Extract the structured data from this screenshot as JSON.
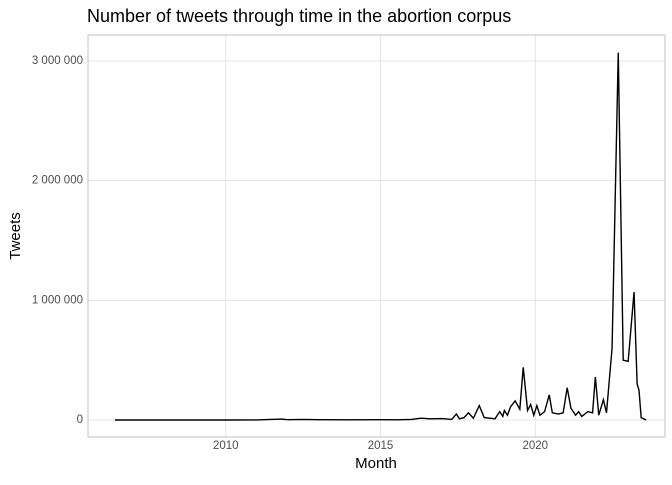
{
  "chart_data": {
    "type": "line",
    "title": "Number of tweets through time in the abortion corpus",
    "x_label": "Month",
    "y_label": "Tweets",
    "x": [
      2006.42,
      2007,
      2008,
      2009,
      2010,
      2011,
      2011.8,
      2012,
      2012.5,
      2013,
      2014,
      2015,
      2015.5,
      2016,
      2016.3,
      2016.6,
      2017,
      2017.3,
      2017.45,
      2017.55,
      2017.7,
      2017.84,
      2018,
      2018.19,
      2018.35,
      2018.7,
      2018.85,
      2018.95,
      2019.0,
      2019.1,
      2019.2,
      2019.35,
      2019.5,
      2019.61,
      2019.75,
      2019.85,
      2019.95,
      2020.05,
      2020.15,
      2020.3,
      2020.45,
      2020.55,
      2020.75,
      2020.9,
      2021.03,
      2021.15,
      2021.3,
      2021.4,
      2021.5,
      2021.7,
      2021.85,
      2021.94,
      2022.05,
      2022.2,
      2022.3,
      2022.48,
      2022.68,
      2022.84,
      2023.0,
      2023.19,
      2023.29,
      2023.35,
      2023.42,
      2023.58
    ],
    "series": [
      {
        "name": "Tweets",
        "color": "#000000",
        "values": [
          0,
          0,
          0,
          0,
          0,
          1000,
          8000,
          3000,
          5000,
          3000,
          2000,
          3000,
          2000,
          5000,
          15000,
          10000,
          12000,
          5000,
          50000,
          10000,
          20000,
          60000,
          15000,
          120000,
          20000,
          10000,
          70000,
          30000,
          80000,
          40000,
          110000,
          160000,
          90000,
          440000,
          80000,
          130000,
          40000,
          120000,
          40000,
          70000,
          210000,
          60000,
          50000,
          60000,
          270000,
          100000,
          40000,
          70000,
          30000,
          70000,
          60000,
          360000,
          40000,
          170000,
          60000,
          600000,
          3070000,
          500000,
          490000,
          1070000,
          300000,
          250000,
          20000,
          0
        ]
      }
    ],
    "xlim": [
      2005.55,
      2024.19
    ],
    "xticks": [
      2010,
      2015,
      2020
    ],
    "ylim": [
      -142000,
      3217000
    ],
    "yticks": [
      0,
      {
        "value": 1000000,
        "label": "1 000 000"
      },
      {
        "value": 2000000,
        "label": "2 000 000"
      },
      {
        "value": 3000000,
        "label": "3 000 000"
      }
    ],
    "grid": true
  }
}
